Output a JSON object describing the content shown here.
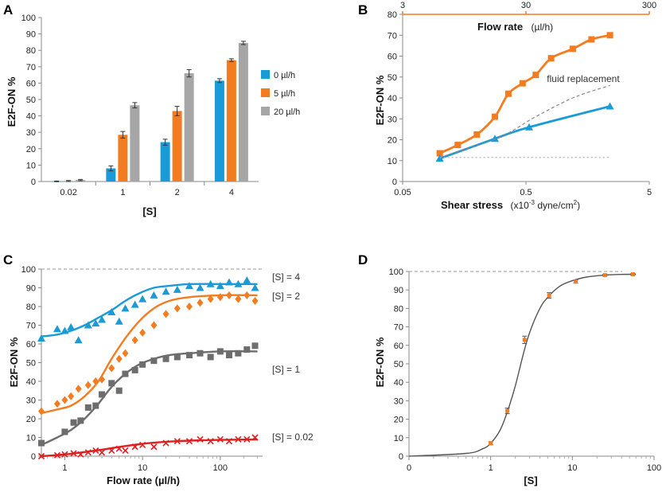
{
  "chart_data": [
    {
      "panel": "A",
      "type": "bar",
      "title": "",
      "xlabel": "[S]",
      "ylabel": "E2F-ON %",
      "ylim": [
        0,
        100
      ],
      "yticks": [
        0,
        10,
        20,
        30,
        40,
        50,
        60,
        70,
        80,
        90,
        100
      ],
      "categories": [
        "0.02",
        "1",
        "2",
        "4"
      ],
      "legend_position": "right",
      "series": [
        {
          "name": "0 µl/h",
          "color": "#1a9bd7",
          "values": [
            0.1,
            8,
            24,
            61.5
          ],
          "errors": [
            0.2,
            1.5,
            1.8,
            1.2
          ]
        },
        {
          "name": "5 µl/h",
          "color": "#f47c20",
          "values": [
            0.3,
            28.5,
            43,
            74
          ],
          "errors": [
            0.3,
            2.0,
            2.8,
            0.8
          ]
        },
        {
          "name": "20 µl/h",
          "color": "#a6a6a6",
          "values": [
            0.9,
            46.5,
            66,
            84.5
          ],
          "errors": [
            0.4,
            1.6,
            2.2,
            1.0
          ]
        }
      ]
    },
    {
      "panel": "B",
      "type": "line",
      "xlabel": "Shear stress",
      "xlabel_units": "(x10",
      "xlabel_exp": "-3",
      "xlabel_units_tail": " dyne/cm",
      "xlabel_sq": "2",
      "xlabel_close": ")",
      "ylabel": "E2F-ON %",
      "x_scale": "log",
      "xlim": [
        0.05,
        5
      ],
      "xticks": [
        "0.05",
        "0.5",
        "5"
      ],
      "ylim": [
        0,
        80
      ],
      "yticks": [
        0,
        10,
        20,
        30,
        40,
        50,
        60,
        70,
        80
      ],
      "top_axis_label": "Flow rate",
      "top_axis_units": "(µl/h)",
      "top_axis_ticks": [
        "3",
        "30",
        "300"
      ],
      "top_axis_color": "#f47c20",
      "annotation": "fluid replacement",
      "series": [
        {
          "name": "orange",
          "color": "#f47c20",
          "marker": "square",
          "x": [
            0.1,
            0.14,
            0.2,
            0.28,
            0.36,
            0.47,
            0.6,
            0.8,
            1.2,
            1.7,
            2.4
          ],
          "y": [
            13.5,
            17.5,
            22.5,
            31,
            42,
            47,
            51,
            59,
            63.5,
            68,
            70
          ]
        },
        {
          "name": "blue",
          "color": "#1a9bd7",
          "marker": "triangle",
          "x": [
            0.1,
            0.28,
            0.53,
            2.4
          ],
          "y": [
            11,
            20.5,
            26,
            36
          ]
        },
        {
          "name": "fluid replacement",
          "color": "#888888",
          "style": "dashed",
          "x": [
            0.1,
            0.3,
            0.6,
            1.2,
            2.4
          ],
          "y": [
            11.5,
            21,
            31,
            40,
            46
          ]
        },
        {
          "name": "baseline",
          "color": "#aaaaaa",
          "style": "dotted",
          "x": [
            0.1,
            2.4
          ],
          "y": [
            11.5,
            11.5
          ]
        }
      ]
    },
    {
      "panel": "C",
      "type": "scatter",
      "xlabel": "Flow rate (µl/h)",
      "ylabel": "E2F-ON %",
      "x_scale": "log",
      "xlim": [
        0.5,
        350
      ],
      "xticks": [
        "1",
        "10",
        "100"
      ],
      "ylim": [
        0,
        100
      ],
      "yticks": [
        0,
        10,
        20,
        30,
        40,
        50,
        60,
        70,
        80,
        90,
        100
      ],
      "reference_line": 100,
      "series": [
        {
          "name": "[S] = 4",
          "color": "#1a9bd7",
          "marker": "triangle",
          "x": [
            0.5,
            0.8,
            1.0,
            1.2,
            1.5,
            2.0,
            2.5,
            3.0,
            4.0,
            5.0,
            6.0,
            8.0,
            10,
            14,
            20,
            28,
            40,
            55,
            75,
            100,
            130,
            170,
            220,
            280
          ],
          "y": [
            63,
            68,
            67,
            69,
            62,
            70,
            71,
            73,
            77,
            72,
            79,
            81,
            84,
            86,
            88,
            89,
            91,
            90,
            92,
            91,
            93,
            92,
            94,
            90
          ],
          "fit": [
            64,
            65,
            67,
            70,
            74,
            78,
            83,
            87,
            90,
            91,
            92,
            92,
            92
          ]
        },
        {
          "name": "[S] = 2",
          "color": "#f47c20",
          "marker": "diamond",
          "x": [
            0.5,
            0.8,
            1.0,
            1.2,
            1.5,
            2.0,
            2.5,
            3.0,
            4.0,
            5.0,
            6.0,
            8.0,
            10,
            14,
            20,
            28,
            40,
            55,
            75,
            100,
            130,
            170,
            220,
            280
          ],
          "y": [
            24,
            28,
            30,
            32,
            36,
            38,
            40,
            41,
            47,
            52,
            55,
            62,
            66,
            70,
            76,
            79,
            80,
            82,
            84,
            85,
            86,
            84,
            86,
            83
          ],
          "fit": [
            23,
            25,
            27,
            32,
            40,
            52,
            63,
            72,
            79,
            83,
            85,
            86,
            86
          ]
        },
        {
          "name": "[S] = 1",
          "color": "#6d6d6d",
          "marker": "square",
          "x": [
            0.5,
            1.0,
            1.3,
            1.6,
            2.0,
            2.5,
            3.0,
            4.0,
            5.0,
            6.0,
            8.0,
            10,
            14,
            20,
            28,
            40,
            55,
            75,
            100,
            130,
            170,
            220,
            280
          ],
          "y": [
            7,
            13,
            18,
            19,
            26,
            27,
            33,
            39,
            35,
            44,
            46,
            49,
            51,
            52,
            53,
            54,
            55,
            53,
            56,
            54,
            55,
            57,
            59
          ],
          "fit": [
            6,
            10,
            14,
            20,
            28,
            37,
            44,
            49,
            52,
            54,
            55,
            56,
            56
          ]
        },
        {
          "name": "[S] = 0.02",
          "color": "#e02020",
          "marker": "x",
          "x": [
            0.5,
            0.8,
            1.0,
            1.3,
            1.6,
            2.0,
            2.5,
            3.0,
            4.0,
            5.0,
            6.0,
            8.0,
            10,
            14,
            20,
            28,
            40,
            55,
            75,
            100,
            130,
            170,
            220,
            280
          ],
          "y": [
            0,
            0.5,
            1,
            1.5,
            1,
            2,
            3,
            2,
            3,
            4,
            3,
            5,
            6,
            5,
            7,
            8,
            8,
            9,
            8,
            9,
            8,
            9,
            9,
            10
          ],
          "fit": [
            0,
            0.6,
            1.3,
            2.2,
            3.2,
            4.3,
            5.4,
            6.4,
            7.2,
            7.8,
            8.3,
            8.7,
            9
          ]
        }
      ],
      "fit_x": [
        0.5,
        0.8,
        1.2,
        1.8,
        2.7,
        4.0,
        6.0,
        9.0,
        14,
        22,
        40,
        100,
        300
      ]
    },
    {
      "panel": "D",
      "type": "line",
      "xlabel": "[S]",
      "ylabel": "E2F-ON %",
      "x_scale": "log",
      "xlim": [
        0.1,
        100
      ],
      "xticks": [
        "0",
        "1",
        "10",
        "100"
      ],
      "ylim": [
        0,
        100
      ],
      "yticks": [
        0,
        10,
        20,
        30,
        40,
        50,
        60,
        70,
        80,
        90,
        100
      ],
      "reference_line": 100,
      "points": {
        "x": [
          1,
          1.6,
          2.6,
          5.2,
          11,
          25,
          55
        ],
        "y": [
          7,
          24.5,
          63,
          87,
          94.5,
          98,
          98.5
        ],
        "errors": [
          0.8,
          1.5,
          2.0,
          1.5,
          0.8,
          0.5,
          0.5
        ],
        "color": "#f47c20"
      },
      "fit": {
        "x": [
          0.1,
          0.5,
          0.8,
          1.0,
          1.3,
          1.6,
          2.0,
          2.5,
          3.0,
          4.0,
          5.0,
          7.0,
          10,
          15,
          25,
          40,
          60
        ],
        "y": [
          0,
          1.5,
          4,
          7,
          14,
          24,
          38,
          55,
          67,
          80,
          86,
          92,
          95,
          97,
          98,
          98.4,
          98.5
        ],
        "color": "#555555"
      }
    }
  ],
  "panels": {
    "A": {
      "letter": "A"
    },
    "B": {
      "letter": "B"
    },
    "C": {
      "letter": "C"
    },
    "D": {
      "letter": "D"
    }
  }
}
